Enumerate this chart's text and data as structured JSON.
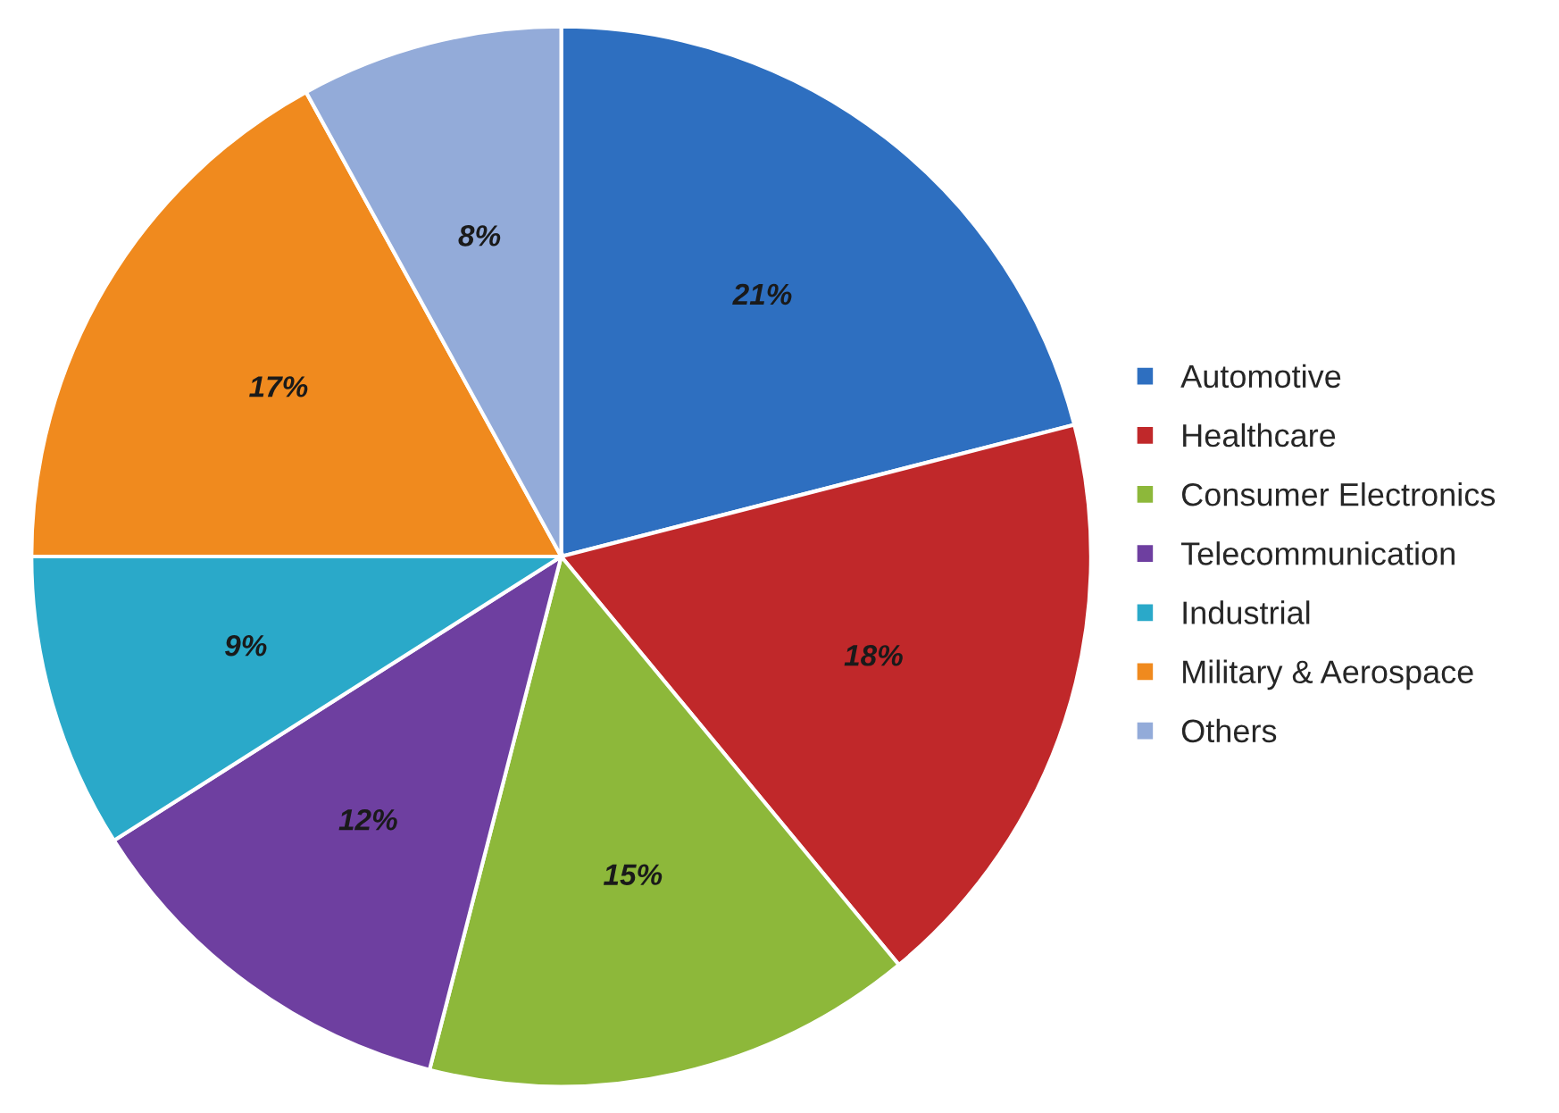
{
  "chart_data": {
    "type": "pie",
    "categories": [
      "Automotive",
      "Healthcare",
      "Consumer Electronics",
      "Telecommunication",
      "Industrial",
      "Military & Aerospace",
      "Others"
    ],
    "values": [
      21,
      18,
      15,
      12,
      9,
      17,
      8
    ],
    "value_labels": [
      "21%",
      "18%",
      "15%",
      "12%",
      "9%",
      "17%",
      "8%"
    ],
    "colors": [
      "#2e6fc0",
      "#c0282a",
      "#8db83a",
      "#6e3fa0",
      "#2aa9c9",
      "#f08a1e",
      "#93abd9"
    ],
    "legend": "right"
  }
}
